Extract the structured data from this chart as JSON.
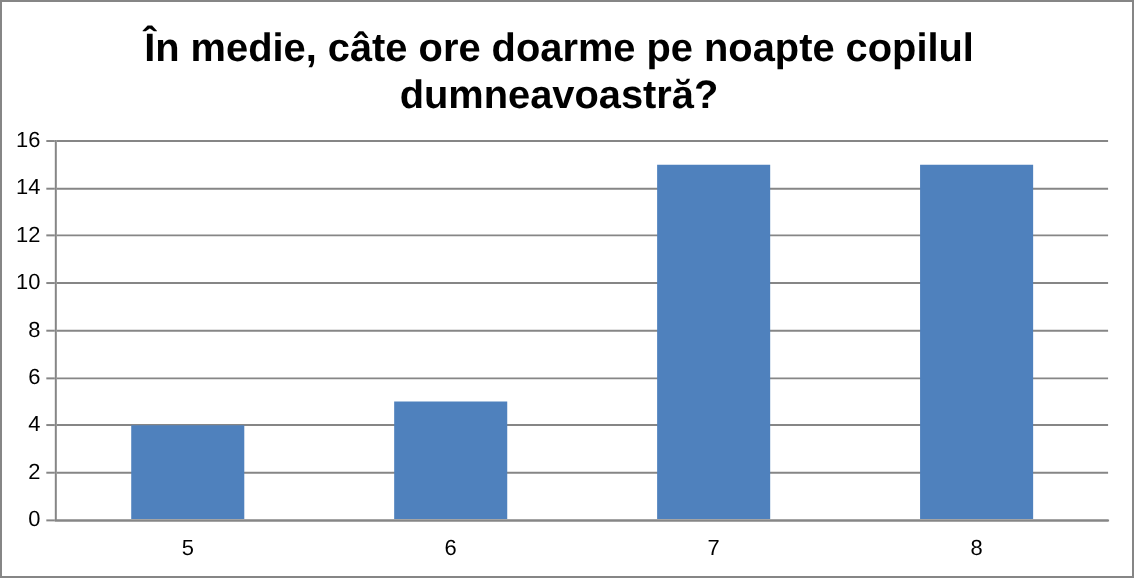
{
  "chart_data": {
    "type": "bar",
    "title": "În medie, câte ore doarme pe noapte copilul dumneavoastră?",
    "categories": [
      "5",
      "6",
      "7",
      "8"
    ],
    "values": [
      4,
      5,
      15,
      15
    ],
    "color": "#4f81bd",
    "ylim": [
      0,
      16
    ],
    "yticks": [
      0,
      2,
      4,
      6,
      8,
      10,
      12,
      14,
      16
    ],
    "grid": "y",
    "legend": false
  }
}
